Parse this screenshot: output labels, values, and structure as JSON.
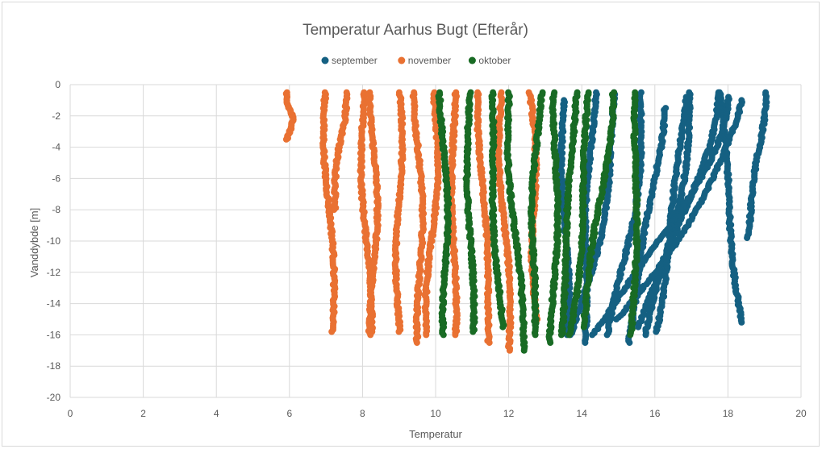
{
  "chart_data": {
    "type": "scatter",
    "title": "Temperatur Aarhus Bugt (Efterår)",
    "xlabel": "Temperatur",
    "ylabel": "Vanddybde [m]",
    "xlim": [
      0,
      20
    ],
    "ylim": [
      -20,
      0
    ],
    "x_ticks": [
      "0",
      "2",
      "4",
      "6",
      "8",
      "10",
      "12",
      "14",
      "16",
      "18",
      "20"
    ],
    "y_ticks": [
      "0",
      "-2",
      "-4",
      "-6",
      "-8",
      "-10",
      "-12",
      "-14",
      "-16",
      "-18",
      "-20"
    ],
    "grid": true,
    "legend_position": "top",
    "series": [
      {
        "name": "september",
        "color": "#156082",
        "profiles": [
          {
            "top": [
              14.3,
              -0.5
            ],
            "bottom": [
              14.0,
              -16.5
            ]
          },
          {
            "top": [
              15.0,
              -0.5
            ],
            "bottom": [
              13.8,
              -16.0
            ]
          },
          {
            "top": [
              15.7,
              -0.5
            ],
            "bottom": [
              14.8,
              -16.0
            ]
          },
          {
            "top": [
              16.2,
              -1.5
            ],
            "bottom": [
              15.2,
              -16.5
            ]
          },
          {
            "top": [
              17.0,
              -0.5
            ],
            "bottom": [
              15.8,
              -16.0
            ]
          },
          {
            "top": [
              17.7,
              -0.5
            ],
            "bottom": [
              15.5,
              -15.5
            ]
          },
          {
            "top": [
              18.4,
              -1.0
            ],
            "bottom": [
              15.0,
              -15.0
            ]
          },
          {
            "top": [
              19.0,
              -0.5
            ],
            "bottom": [
              18.5,
              -9.8
            ]
          },
          {
            "top": [
              17.8,
              -0.5
            ],
            "bottom": [
              18.4,
              -15.2
            ]
          },
          {
            "top": [
              16.8,
              -0.8
            ],
            "bottom": [
              16.0,
              -15.8
            ]
          },
          {
            "top": [
              18.0,
              -0.8
            ],
            "bottom": [
              14.3,
              -16.0
            ]
          },
          {
            "top": [
              13.5,
              -1.0
            ],
            "bottom": [
              13.6,
              -16.0
            ]
          }
        ]
      },
      {
        "name": "november",
        "color": "#E97132",
        "profiles": [
          {
            "top": [
              6.0,
              -0.5
            ],
            "bottom": [
              6.0,
              -3.5
            ]
          },
          {
            "top": [
              7.0,
              -0.5
            ],
            "bottom": [
              7.2,
              -15.8
            ]
          },
          {
            "top": [
              7.5,
              -0.5
            ],
            "bottom": [
              7.2,
              -8.0
            ]
          },
          {
            "top": [
              8.0,
              -0.5
            ],
            "bottom": [
              8.2,
              -15.8
            ]
          },
          {
            "top": [
              8.3,
              -0.5
            ],
            "bottom": [
              8.3,
              -16.0
            ]
          },
          {
            "top": [
              9.0,
              -0.5
            ],
            "bottom": [
              9.0,
              -15.8
            ]
          },
          {
            "top": [
              9.5,
              -0.5
            ],
            "bottom": [
              9.6,
              -16.5
            ]
          },
          {
            "top": [
              10.0,
              -0.5
            ],
            "bottom": [
              9.8,
              -16.0
            ]
          },
          {
            "top": [
              10.5,
              -0.5
            ],
            "bottom": [
              10.5,
              -16.0
            ]
          },
          {
            "top": [
              11.2,
              -0.5
            ],
            "bottom": [
              11.5,
              -16.5
            ]
          },
          {
            "top": [
              11.8,
              -0.5
            ],
            "bottom": [
              12.0,
              -17.0
            ]
          },
          {
            "top": [
              12.6,
              -0.5
            ],
            "bottom": [
              12.8,
              -15.0
            ]
          }
        ]
      },
      {
        "name": "oktober",
        "color": "#196B24",
        "profiles": [
          {
            "top": [
              10.2,
              -0.5
            ],
            "bottom": [
              10.3,
              -16.0
            ]
          },
          {
            "top": [
              10.9,
              -0.5
            ],
            "bottom": [
              11.0,
              -15.8
            ]
          },
          {
            "top": [
              11.5,
              -0.5
            ],
            "bottom": [
              11.8,
              -15.5
            ]
          },
          {
            "top": [
              12.0,
              -0.5
            ],
            "bottom": [
              12.4,
              -17.0
            ]
          },
          {
            "top": [
              12.8,
              -0.5
            ],
            "bottom": [
              12.6,
              -16.0
            ]
          },
          {
            "top": [
              13.3,
              -0.5
            ],
            "bottom": [
              13.2,
              -16.5
            ]
          },
          {
            "top": [
              13.8,
              -0.5
            ],
            "bottom": [
              13.4,
              -16.0
            ]
          },
          {
            "top": [
              14.2,
              -0.5
            ],
            "bottom": [
              13.7,
              -16.0
            ]
          },
          {
            "top": [
              14.8,
              -0.5
            ],
            "bottom": [
              14.0,
              -15.5
            ]
          },
          {
            "top": [
              15.5,
              -0.5
            ],
            "bottom": [
              15.4,
              -16.0
            ]
          }
        ]
      }
    ]
  }
}
